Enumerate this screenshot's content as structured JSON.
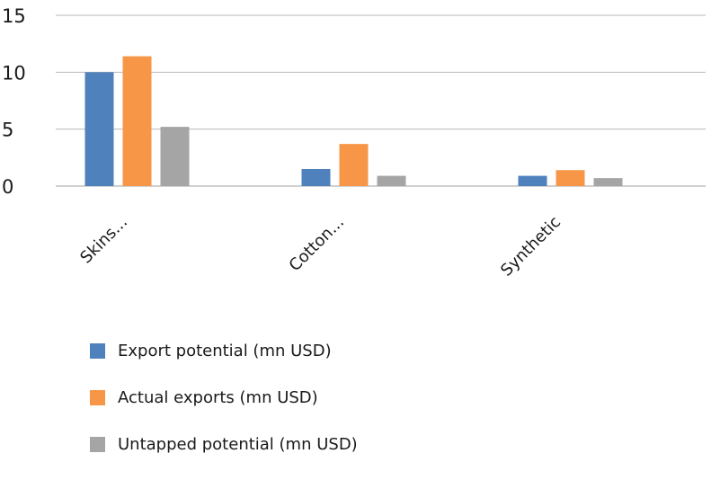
{
  "chart_data": {
    "type": "bar",
    "categories": [
      "Skins...",
      "Cotton...",
      "Synthetic"
    ],
    "series": [
      {
        "name": "Export potential (mn USD)",
        "values": [
          10.0,
          1.5,
          0.9
        ],
        "color": "#4f81bd"
      },
      {
        "name": "Actual exports (mn USD)",
        "values": [
          11.4,
          3.7,
          1.4
        ],
        "color": "#f79646"
      },
      {
        "name": "Untapped potential (mn USD)",
        "values": [
          5.2,
          0.9,
          0.7
        ],
        "color": "#a5a5a5"
      }
    ],
    "yticks": [
      "0",
      "5",
      "10",
      "15"
    ],
    "ylim": [
      0,
      15
    ],
    "grid": true,
    "legend_position": "bottom-left",
    "title": "",
    "xlabel": "",
    "ylabel": ""
  }
}
